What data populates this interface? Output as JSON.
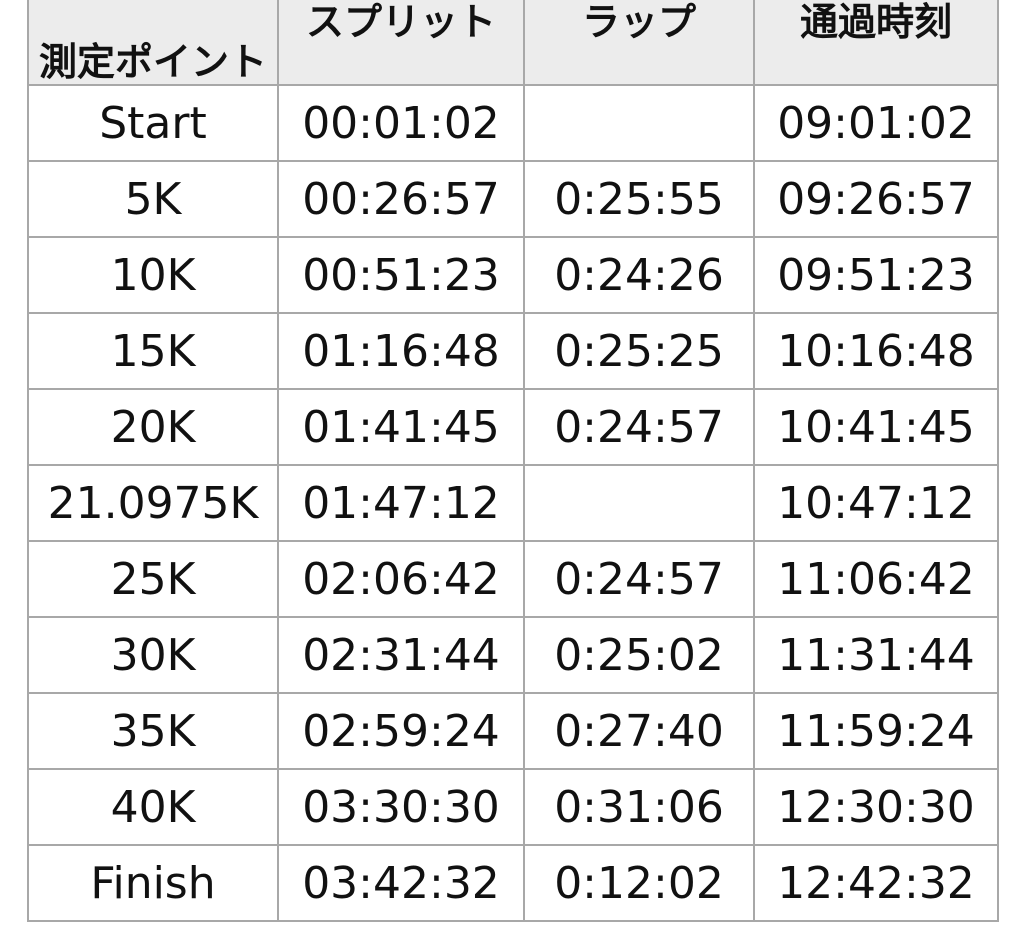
{
  "table": {
    "headers": {
      "point": "測定ポイント",
      "split": "スプリット",
      "lap": "ラップ",
      "time": "通過時刻"
    },
    "rows": [
      {
        "point": "Start",
        "split": "00:01:02",
        "lap": "",
        "time": "09:01:02"
      },
      {
        "point": "5K",
        "split": "00:26:57",
        "lap": "0:25:55",
        "time": "09:26:57"
      },
      {
        "point": "10K",
        "split": "00:51:23",
        "lap": "0:24:26",
        "time": "09:51:23"
      },
      {
        "point": "15K",
        "split": "01:16:48",
        "lap": "0:25:25",
        "time": "10:16:48"
      },
      {
        "point": "20K",
        "split": "01:41:45",
        "lap": "0:24:57",
        "time": "10:41:45"
      },
      {
        "point": "21.0975K",
        "split": "01:47:12",
        "lap": "",
        "time": "10:47:12"
      },
      {
        "point": "25K",
        "split": "02:06:42",
        "lap": "0:24:57",
        "time": "11:06:42"
      },
      {
        "point": "30K",
        "split": "02:31:44",
        "lap": "0:25:02",
        "time": "11:31:44"
      },
      {
        "point": "35K",
        "split": "02:59:24",
        "lap": "0:27:40",
        "time": "11:59:24"
      },
      {
        "point": "40K",
        "split": "03:30:30",
        "lap": "0:31:06",
        "time": "12:30:30"
      },
      {
        "point": "Finish",
        "split": "03:42:32",
        "lap": "0:12:02",
        "time": "12:42:32"
      }
    ]
  }
}
